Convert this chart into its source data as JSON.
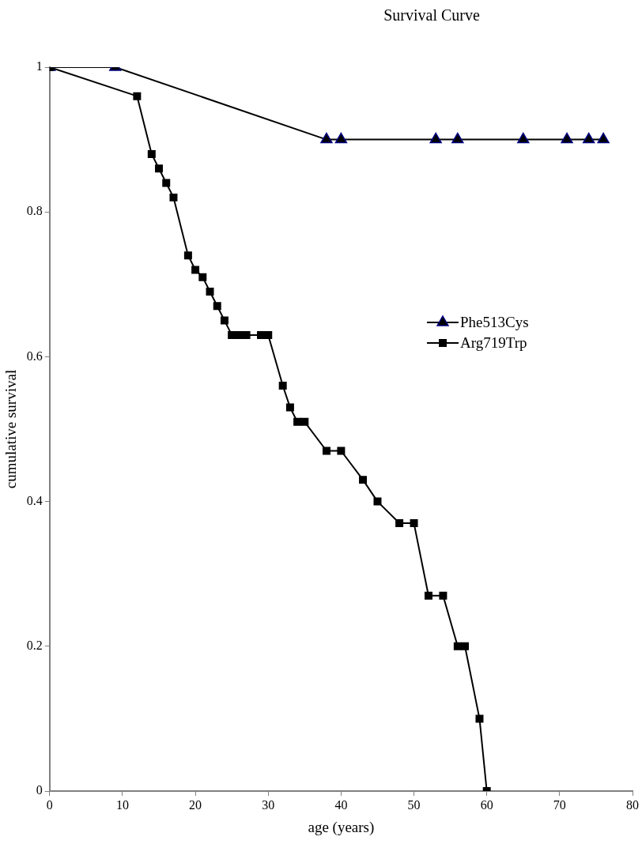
{
  "chart_data": {
    "type": "line",
    "title": "Survival Curve",
    "xlabel": "age (years)",
    "ylabel": "cumulative survival",
    "xlim": [
      0,
      80
    ],
    "xticks": [
      0,
      10,
      20,
      30,
      40,
      50,
      60,
      70,
      80
    ],
    "ylim": [
      0,
      1
    ],
    "yticks": [
      0,
      0.2,
      0.4,
      0.6,
      0.8,
      1
    ],
    "grid": false,
    "legend": "right",
    "line_style": "solid",
    "series": [
      {
        "name": "Phe513Cys",
        "color": "#000080",
        "marker": "triangle",
        "x": [
          0,
          9,
          38,
          40,
          53,
          56,
          65,
          71,
          74,
          76
        ],
        "values": [
          1,
          1,
          0.9,
          0.9,
          0.9,
          0.9,
          0.9,
          0.9,
          0.9,
          0.9
        ]
      },
      {
        "name": "Arg719Trp",
        "color": "#000000",
        "marker": "square",
        "x": [
          0,
          12,
          14,
          15,
          16,
          17,
          19,
          20,
          21,
          22,
          23,
          24,
          25,
          26,
          27,
          29,
          30,
          32,
          33,
          34,
          35,
          38,
          40,
          43,
          45,
          48,
          50,
          52,
          54,
          56,
          57,
          59,
          60
        ],
        "values": [
          1,
          0.96,
          0.88,
          0.86,
          0.84,
          0.82,
          0.74,
          0.72,
          0.71,
          0.69,
          0.67,
          0.65,
          0.63,
          0.63,
          0.63,
          0.63,
          0.63,
          0.56,
          0.53,
          0.51,
          0.51,
          0.47,
          0.47,
          0.43,
          0.4,
          0.37,
          0.37,
          0.27,
          0.27,
          0.2,
          0.2,
          0.1,
          0
        ]
      }
    ]
  }
}
